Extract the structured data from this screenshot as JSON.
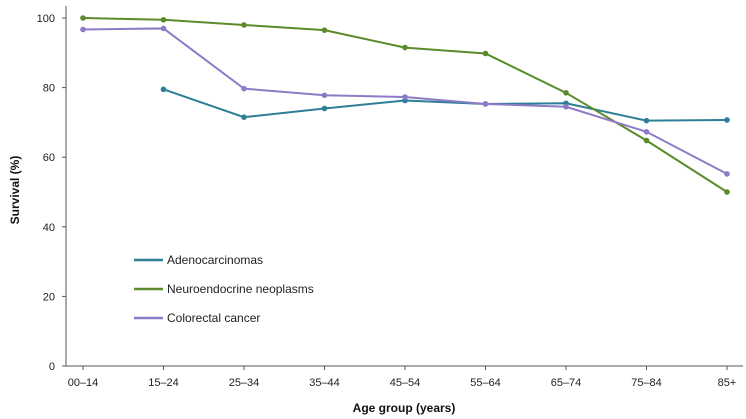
{
  "chart_data": {
    "type": "line",
    "title": "",
    "xlabel": "Age group (years)",
    "ylabel": "Survival (%)",
    "categories": [
      "00–14",
      "15–24",
      "25–34",
      "35–44",
      "45–54",
      "55–64",
      "65–74",
      "75–84",
      "85+"
    ],
    "ylim": [
      0,
      100
    ],
    "yticks": [
      0,
      20,
      40,
      60,
      80,
      100
    ],
    "grid": false,
    "legend_position": "bottom-left",
    "series": [
      {
        "name": "Adenocarcinomas",
        "color": "#2e7f96",
        "values": [
          null,
          79.5,
          71.5,
          74,
          76.3,
          75.3,
          75.5,
          70.5,
          70.7
        ]
      },
      {
        "name": "Neuroendocrine neoplasms",
        "color": "#5a8a2a",
        "values": [
          100,
          99.5,
          98,
          96.5,
          91.5,
          89.8,
          78.5,
          64.8,
          50
        ]
      },
      {
        "name": "Colorectal cancer",
        "color": "#8e7bc7",
        "values": [
          96.7,
          97,
          79.7,
          77.8,
          77.3,
          75.3,
          74.5,
          67.3,
          55.2
        ]
      }
    ]
  }
}
